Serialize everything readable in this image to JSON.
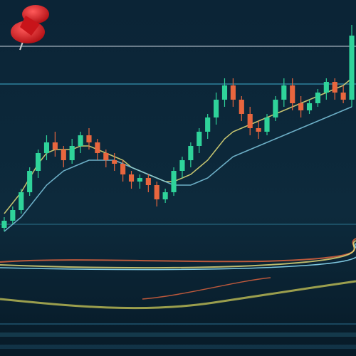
{
  "chart_data": {
    "type": "candlestick",
    "ylim": [
      0,
      100
    ],
    "up_color": "#2fd39a",
    "down_color": "#e8663e",
    "open": [
      36,
      38,
      41,
      46,
      52,
      57,
      60,
      58,
      55,
      59,
      62,
      60,
      57,
      55,
      54,
      51,
      49,
      50,
      48,
      44,
      46,
      52,
      55,
      59,
      63,
      67,
      72,
      76,
      72,
      68,
      64,
      63,
      67,
      72,
      76,
      71,
      69,
      71,
      74,
      77,
      74,
      72
    ],
    "close": [
      38,
      41,
      46,
      52,
      57,
      60,
      58,
      55,
      59,
      62,
      60,
      57,
      55,
      54,
      51,
      49,
      50,
      48,
      44,
      46,
      52,
      55,
      59,
      63,
      67,
      72,
      76,
      72,
      68,
      64,
      63,
      67,
      72,
      76,
      71,
      69,
      71,
      74,
      77,
      74,
      72,
      90
    ],
    "high": [
      39,
      42,
      47,
      53,
      58,
      62,
      63,
      59,
      61,
      63,
      64,
      61,
      58,
      57,
      55,
      52,
      51,
      51,
      49,
      47,
      53,
      56,
      60,
      64,
      68,
      74,
      78,
      78,
      73,
      70,
      66,
      68,
      73,
      78,
      78,
      73,
      72,
      75,
      78,
      78,
      76,
      93
    ],
    "low": [
      35,
      37,
      40,
      45,
      50,
      55,
      56,
      53,
      54,
      57,
      58,
      55,
      53,
      52,
      49,
      47,
      47,
      46,
      42,
      43,
      45,
      50,
      53,
      57,
      61,
      65,
      70,
      70,
      66,
      62,
      61,
      62,
      66,
      70,
      69,
      67,
      68,
      70,
      72,
      72,
      71,
      70
    ],
    "lines": [
      {
        "color": "#e8e07a",
        "values": [
          40,
          43,
          46,
          50,
          54,
          57,
          58,
          58,
          58,
          59,
          59,
          58,
          57,
          56,
          55,
          53,
          52,
          51,
          50,
          49,
          49,
          50,
          51,
          53,
          55,
          58,
          61,
          63,
          64,
          65,
          66,
          67,
          68,
          69,
          70,
          71,
          72,
          73,
          74,
          75,
          76,
          78
        ]
      },
      {
        "color": "#7fc8e0",
        "values": [
          35,
          37,
          39,
          42,
          45,
          48,
          50,
          52,
          53,
          54,
          55,
          55,
          55,
          55,
          54,
          53,
          52,
          51,
          50,
          49,
          48,
          48,
          48,
          49,
          50,
          52,
          54,
          56,
          57,
          58,
          59,
          60,
          61,
          62,
          63,
          64,
          65,
          66,
          67,
          68,
          69,
          70
        ]
      }
    ]
  }
}
